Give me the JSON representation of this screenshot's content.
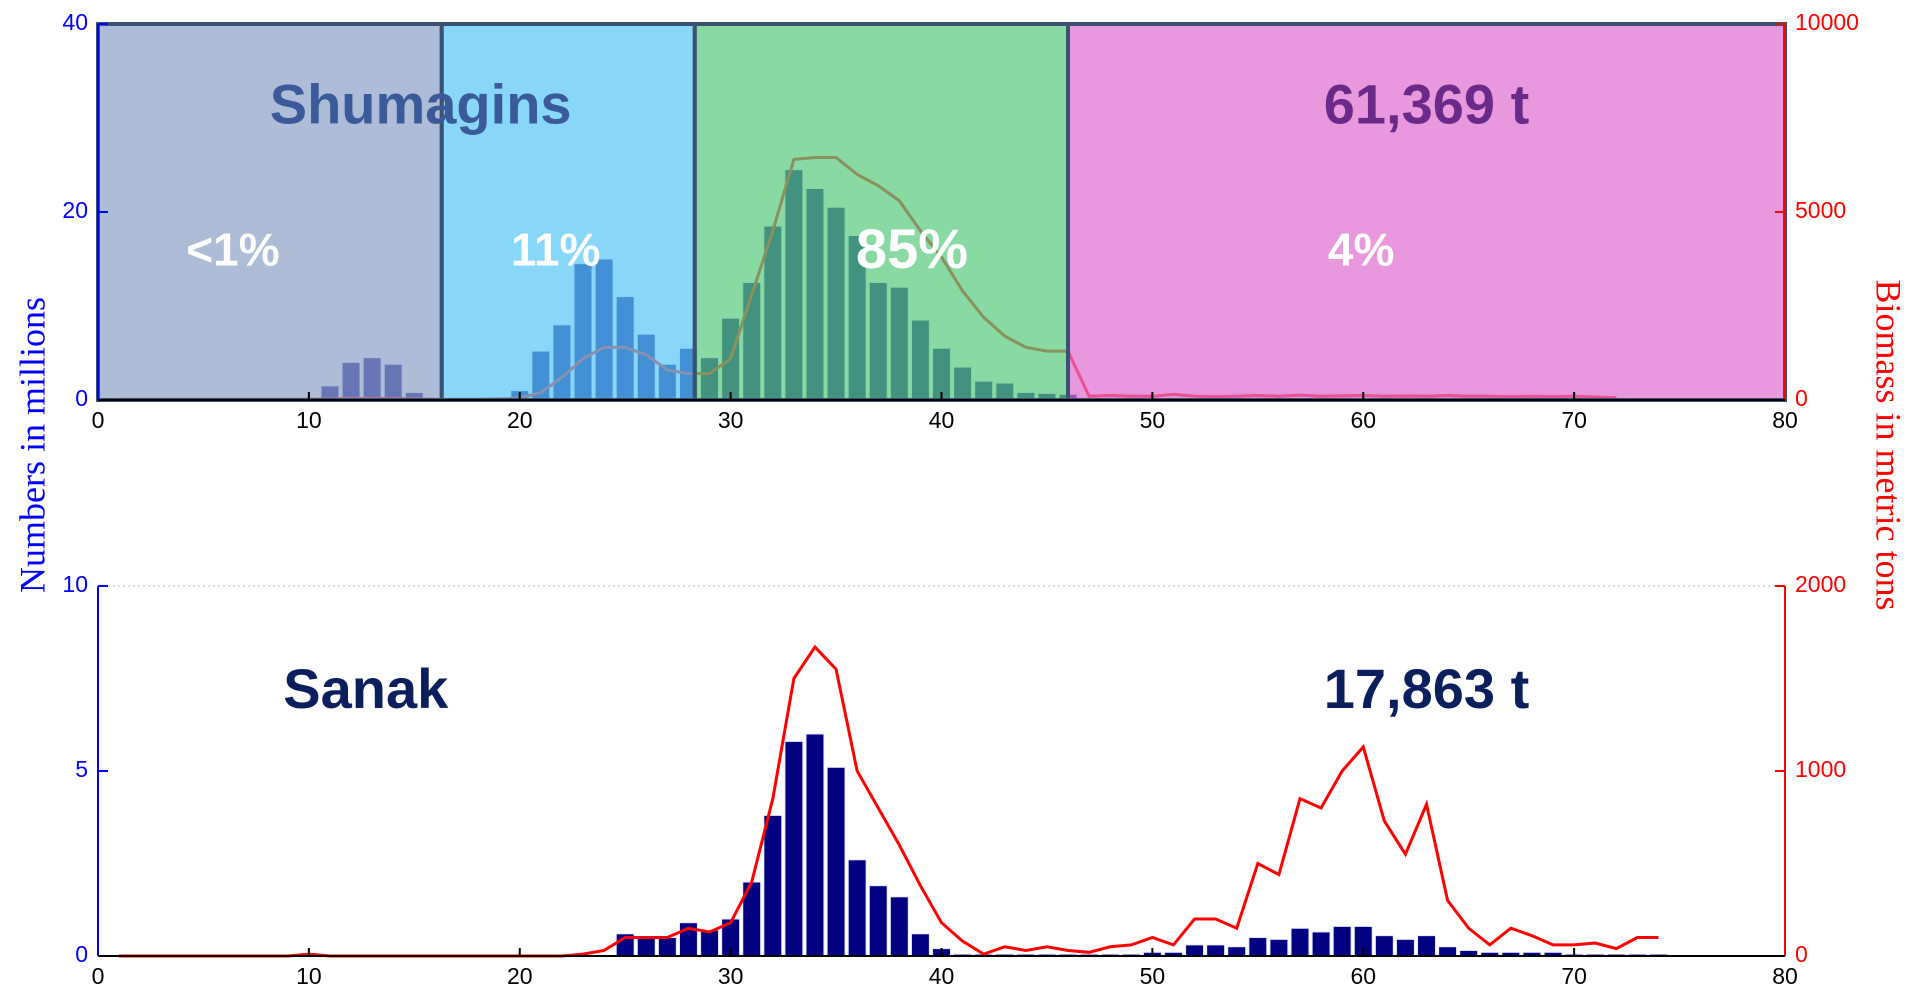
{
  "chart_data": [
    {
      "type": "bar",
      "ylabel": "Numbers in millions",
      "y2label": "Biomass in metric tons",
      "xlim": [
        0,
        80
      ],
      "xticks": [
        0,
        10,
        20,
        30,
        40,
        50,
        60,
        70,
        80
      ],
      "ylim": [
        0,
        40
      ],
      "yticks": [
        0,
        20,
        40
      ],
      "y2lim": [
        0,
        10000
      ],
      "y2ticks": [
        0,
        5000,
        10000
      ],
      "x": [
        1,
        2,
        3,
        4,
        5,
        6,
        7,
        8,
        9,
        10,
        11,
        12,
        13,
        14,
        15,
        16,
        17,
        18,
        19,
        20,
        21,
        22,
        23,
        24,
        25,
        26,
        27,
        28,
        29,
        30,
        31,
        32,
        33,
        34,
        35,
        36,
        37,
        38,
        39,
        40,
        41,
        42,
        43,
        44,
        45,
        46,
        47,
        48,
        49,
        50,
        51,
        52,
        53,
        54,
        55,
        56,
        57,
        58,
        59,
        60,
        61,
        62,
        63,
        64,
        65,
        66,
        67,
        68,
        69,
        70,
        71,
        72,
        73,
        74
      ],
      "series": [
        {
          "name": "Numbers",
          "color": "#000080",
          "values": [
            0,
            0,
            0,
            0,
            0,
            0,
            0,
            0,
            0,
            0,
            1.5,
            4,
            4.5,
            3.8,
            0.8,
            0,
            0,
            0,
            0.3,
            1,
            5.2,
            8,
            14.5,
            15,
            11,
            7,
            3.8,
            5.5,
            4.5,
            8.7,
            12.5,
            18.5,
            24.5,
            22.5,
            20.5,
            17.5,
            12.5,
            12,
            8.5,
            5.5,
            3.5,
            2,
            1.8,
            0.8,
            0.7,
            0.6,
            0.2,
            0.2,
            0.2,
            0.2,
            0.2,
            0.2,
            0.2,
            0.2,
            0.2,
            0.2,
            0.2,
            0.2,
            0.2,
            0.2,
            0.2,
            0.2,
            0.2,
            0.2,
            0.2,
            0.2,
            0.2,
            0.2,
            0.2,
            0.2,
            0.2,
            0.2,
            0,
            0
          ]
        },
        {
          "name": "Biomass",
          "color": "#ff0000",
          "axis": "y2",
          "values": [
            20,
            20,
            20,
            20,
            20,
            20,
            20,
            20,
            20,
            20,
            30,
            40,
            40,
            40,
            30,
            20,
            20,
            20,
            30,
            50,
            200,
            600,
            1100,
            1400,
            1400,
            1200,
            800,
            700,
            700,
            1100,
            2800,
            4500,
            6400,
            6450,
            6450,
            6000,
            5700,
            5300,
            4500,
            3800,
            2900,
            2200,
            1700,
            1400,
            1300,
            1300,
            100,
            120,
            100,
            100,
            150,
            100,
            90,
            100,
            120,
            100,
            130,
            100,
            110,
            120,
            100,
            110,
            100,
            120,
            100,
            100,
            90,
            100,
            90,
            100,
            80,
            60,
            null,
            null
          ]
        }
      ],
      "regions": [
        {
          "x0": 0,
          "x1": 16.3,
          "color": "#8fa3c8",
          "label": "<1%"
        },
        {
          "x0": 16.3,
          "x1": 28.3,
          "color": "#5bc8f5",
          "label": "11%"
        },
        {
          "x0": 28.3,
          "x1": 46,
          "color": "#5ccb7f",
          "label": "85%"
        },
        {
          "x0": 46,
          "x1": 80,
          "color": "#e070d0",
          "label": "4%"
        }
      ],
      "annotations": [
        {
          "text": "Shumagins",
          "color": "#3a5a9a"
        },
        {
          "text": "61,369 t",
          "color": "#6a2a8a"
        }
      ]
    },
    {
      "type": "bar",
      "xlim": [
        0,
        80
      ],
      "xticks": [
        0,
        10,
        20,
        30,
        40,
        50,
        60,
        70,
        80
      ],
      "ylim": [
        0,
        10
      ],
      "yticks": [
        0,
        5,
        10
      ],
      "y2lim": [
        0,
        2000
      ],
      "y2ticks": [
        0,
        1000,
        2000
      ],
      "x": [
        1,
        2,
        3,
        4,
        5,
        6,
        7,
        8,
        9,
        10,
        11,
        12,
        13,
        14,
        15,
        16,
        17,
        18,
        19,
        20,
        21,
        22,
        23,
        24,
        25,
        26,
        27,
        28,
        29,
        30,
        31,
        32,
        33,
        34,
        35,
        36,
        37,
        38,
        39,
        40,
        41,
        42,
        43,
        44,
        45,
        46,
        47,
        48,
        49,
        50,
        51,
        52,
        53,
        54,
        55,
        56,
        57,
        58,
        59,
        60,
        61,
        62,
        63,
        64,
        65,
        66,
        67,
        68,
        69,
        70,
        71,
        72,
        73,
        74
      ],
      "series": [
        {
          "name": "Numbers",
          "color": "#000080",
          "values": [
            0,
            0,
            0,
            0,
            0,
            0,
            0,
            0,
            0,
            0,
            0,
            0,
            0,
            0,
            0,
            0,
            0,
            0,
            0,
            0,
            0,
            0,
            0,
            0,
            0.6,
            0.5,
            0.5,
            0.9,
            0.7,
            1,
            2,
            3.8,
            5.8,
            6,
            5.1,
            2.6,
            1.9,
            1.6,
            0.6,
            0.2,
            0.05,
            0.05,
            0.05,
            0.05,
            0.05,
            0.05,
            0.05,
            0.05,
            0.05,
            0.1,
            0.1,
            0.3,
            0.3,
            0.25,
            0.5,
            0.45,
            0.75,
            0.65,
            0.8,
            0.8,
            0.55,
            0.45,
            0.55,
            0.25,
            0.15,
            0.1,
            0.1,
            0.1,
            0.1,
            0.05,
            0.05,
            0.05,
            0.05,
            0.05
          ]
        },
        {
          "name": "Biomass",
          "color": "#ff0000",
          "axis": "y2",
          "values": [
            0,
            0,
            0,
            0,
            0,
            0,
            0,
            0,
            0,
            10,
            0,
            0,
            0,
            0,
            0,
            0,
            0,
            0,
            0,
            0,
            0,
            0,
            10,
            30,
            100,
            100,
            100,
            150,
            130,
            180,
            400,
            850,
            1500,
            1670,
            1550,
            1000,
            800,
            600,
            380,
            180,
            80,
            10,
            50,
            30,
            50,
            30,
            20,
            50,
            60,
            100,
            60,
            200,
            200,
            150,
            500,
            440,
            850,
            800,
            1000,
            1130,
            730,
            550,
            820,
            300,
            150,
            60,
            150,
            110,
            60,
            60,
            70,
            40,
            100,
            100
          ]
        }
      ],
      "annotations": [
        {
          "text": "Sanak",
          "color": "#0a1f5c"
        },
        {
          "text": "17,863 t",
          "color": "#0a1f5c"
        }
      ]
    }
  ]
}
